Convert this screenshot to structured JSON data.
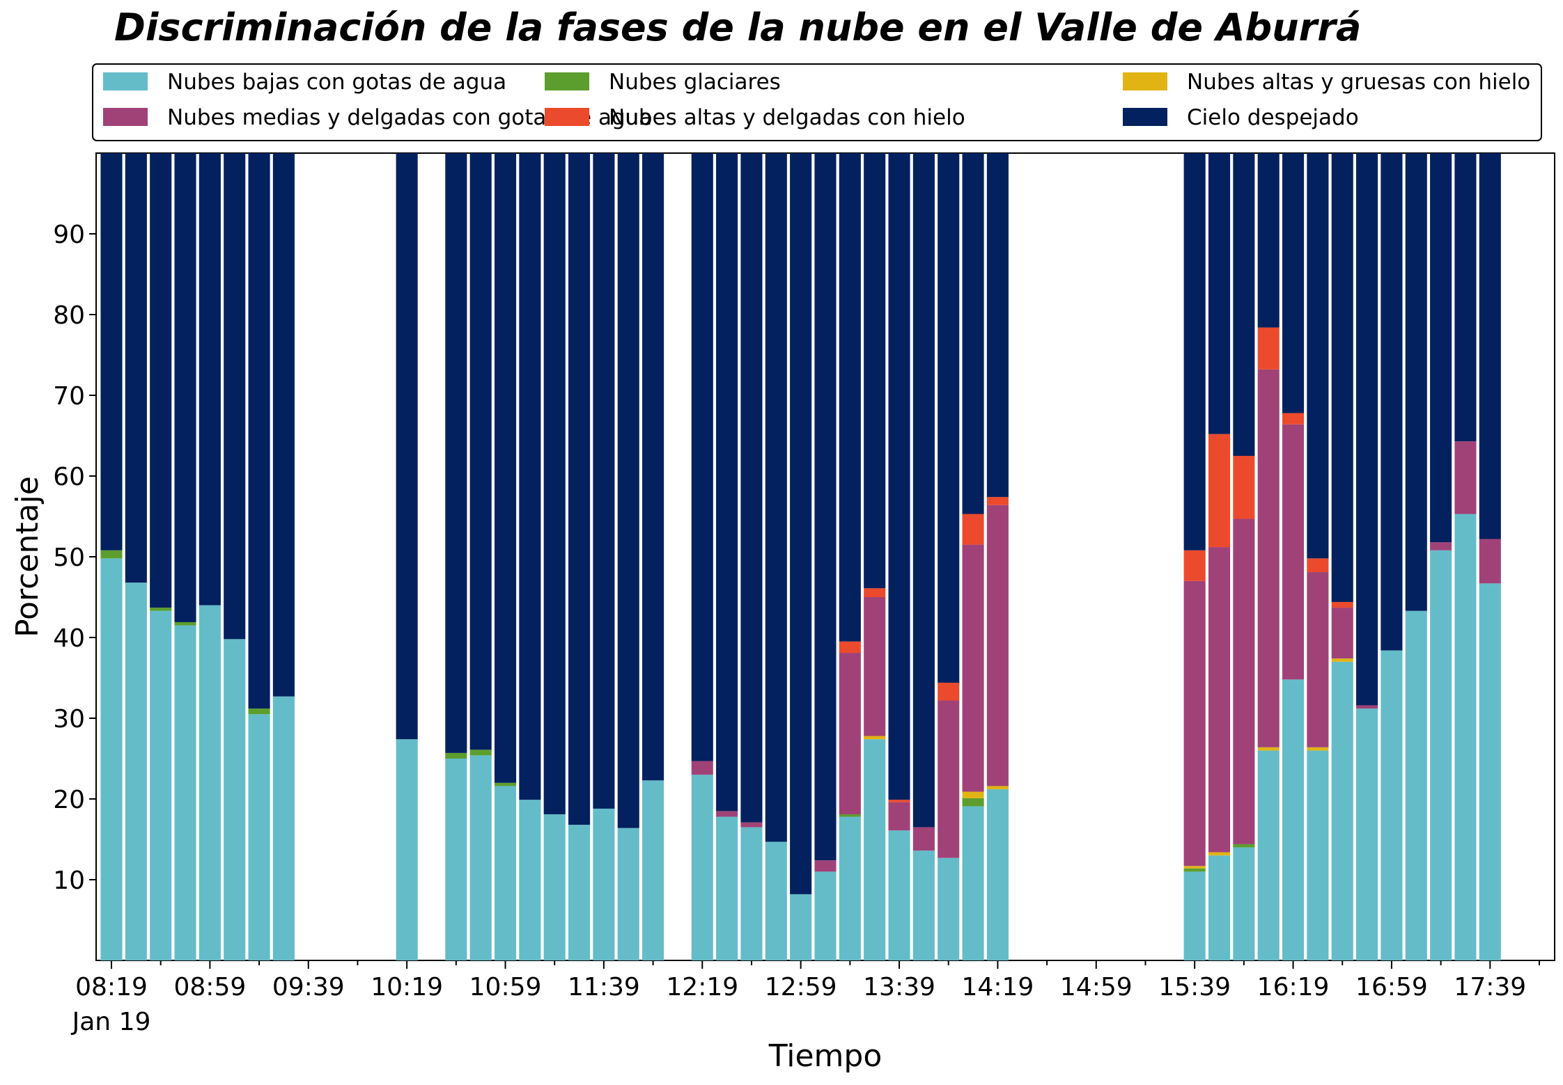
{
  "chart_data": {
    "type": "bar",
    "stacked": true,
    "title": "Discriminación de la fases de la nube en el Valle de Aburrá",
    "xlabel": "Tiempo",
    "ylabel": "Porcentaje",
    "ylim": [
      0,
      100
    ],
    "yticks": [
      10,
      20,
      30,
      40,
      50,
      60,
      70,
      80,
      90
    ],
    "x_axis": {
      "start": "08:19",
      "end": "17:59",
      "bar_interval_minutes": 10,
      "tick_labels": [
        "08:19",
        "08:59",
        "09:39",
        "10:19",
        "10:59",
        "11:39",
        "12:19",
        "12:59",
        "13:39",
        "14:19",
        "14:59",
        "15:39",
        "16:19",
        "16:59",
        "17:39"
      ],
      "date_label": "Jan 19"
    },
    "legend": {
      "placement": "top",
      "columns": 3
    },
    "grid": false,
    "series": [
      {
        "name": "Nubes bajas con gotas de agua",
        "color": "#64bcc8"
      },
      {
        "name": "Nubes glaciares",
        "color": "#5c9e2e"
      },
      {
        "name": "Nubes altas y gruesas con hielo",
        "color": "#e1b414"
      },
      {
        "name": "Nubes medias y delgadas con gotas de agua",
        "color": "#a04278"
      },
      {
        "name": "Nubes altas y delgadas con hielo",
        "color": "#ec4a2c"
      },
      {
        "name": "Cielo despejado",
        "color": "#03215e"
      }
    ],
    "bars": [
      {
        "time": "08:19",
        "values": [
          49.8,
          1.0,
          0,
          0,
          0,
          49.2
        ]
      },
      {
        "time": "08:29",
        "values": [
          46.8,
          0,
          0,
          0,
          0,
          53.2
        ]
      },
      {
        "time": "08:39",
        "values": [
          43.3,
          0.4,
          0,
          0,
          0,
          56.3
        ]
      },
      {
        "time": "08:49",
        "values": [
          41.5,
          0.4,
          0,
          0,
          0,
          58.1
        ]
      },
      {
        "time": "08:59",
        "values": [
          44.0,
          0,
          0,
          0,
          0,
          56.0
        ]
      },
      {
        "time": "09:09",
        "values": [
          39.8,
          0,
          0,
          0,
          0,
          60.2
        ]
      },
      {
        "time": "09:19",
        "values": [
          30.5,
          0.7,
          0,
          0,
          0,
          68.8
        ]
      },
      {
        "time": "09:29",
        "values": [
          32.7,
          0,
          0,
          0,
          0,
          67.3
        ]
      },
      {
        "time": "10:19",
        "values": [
          27.4,
          0,
          0,
          0,
          0,
          72.6
        ]
      },
      {
        "time": "10:39",
        "values": [
          25.0,
          0.7,
          0,
          0,
          0,
          74.3
        ]
      },
      {
        "time": "10:49",
        "values": [
          25.4,
          0.7,
          0,
          0,
          0,
          73.9
        ]
      },
      {
        "time": "10:59",
        "values": [
          21.6,
          0.4,
          0,
          0,
          0,
          78.0
        ]
      },
      {
        "time": "11:09",
        "values": [
          19.9,
          0,
          0,
          0,
          0,
          80.1
        ]
      },
      {
        "time": "11:19",
        "values": [
          18.1,
          0,
          0,
          0,
          0,
          81.9
        ]
      },
      {
        "time": "11:29",
        "values": [
          16.8,
          0,
          0,
          0,
          0,
          83.2
        ]
      },
      {
        "time": "11:39",
        "values": [
          18.8,
          0,
          0,
          0,
          0,
          81.2
        ]
      },
      {
        "time": "11:49",
        "values": [
          16.4,
          0,
          0,
          0,
          0,
          83.6
        ]
      },
      {
        "time": "11:59",
        "values": [
          22.3,
          0,
          0,
          0,
          0,
          77.7
        ]
      },
      {
        "time": "12:19",
        "values": [
          23.0,
          0,
          0,
          1.7,
          0,
          75.3
        ]
      },
      {
        "time": "12:29",
        "values": [
          17.8,
          0,
          0,
          0.7,
          0,
          81.5
        ]
      },
      {
        "time": "12:39",
        "values": [
          16.5,
          0,
          0,
          0.6,
          0,
          82.9
        ]
      },
      {
        "time": "12:49",
        "values": [
          14.7,
          0,
          0,
          0,
          0,
          85.3
        ]
      },
      {
        "time": "12:59",
        "values": [
          8.2,
          0,
          0,
          0,
          0,
          91.8
        ]
      },
      {
        "time": "13:09",
        "values": [
          11.0,
          0,
          0,
          1.4,
          0,
          87.6
        ]
      },
      {
        "time": "13:19",
        "values": [
          17.8,
          0.3,
          0,
          20.0,
          1.4,
          60.5
        ]
      },
      {
        "time": "13:29",
        "values": [
          27.4,
          0,
          0.4,
          17.2,
          1.1,
          53.9
        ]
      },
      {
        "time": "13:39",
        "values": [
          16.1,
          0,
          0,
          3.5,
          0.3,
          80.1
        ]
      },
      {
        "time": "13:49",
        "values": [
          13.6,
          0,
          0,
          2.9,
          0,
          83.5
        ]
      },
      {
        "time": "13:59",
        "values": [
          12.7,
          0,
          0,
          19.5,
          2.2,
          65.6
        ]
      },
      {
        "time": "14:09",
        "values": [
          19.1,
          1.0,
          0.8,
          30.6,
          3.8,
          44.7
        ]
      },
      {
        "time": "14:19",
        "values": [
          21.2,
          0,
          0.4,
          34.8,
          1.0,
          42.6
        ]
      },
      {
        "time": "15:39",
        "values": [
          11.0,
          0.4,
          0.3,
          35.3,
          3.8,
          49.2
        ]
      },
      {
        "time": "15:49",
        "values": [
          13.0,
          0,
          0.4,
          37.8,
          14.0,
          34.8
        ]
      },
      {
        "time": "15:59",
        "values": [
          14.0,
          0.4,
          0,
          40.3,
          7.8,
          37.5
        ]
      },
      {
        "time": "16:09",
        "values": [
          26.0,
          0,
          0.4,
          46.8,
          5.2,
          21.6
        ]
      },
      {
        "time": "16:19",
        "values": [
          34.8,
          0,
          0,
          31.6,
          1.4,
          32.2
        ]
      },
      {
        "time": "16:29",
        "values": [
          26.0,
          0,
          0.4,
          21.7,
          1.7,
          50.2
        ]
      },
      {
        "time": "16:39",
        "values": [
          37.0,
          0,
          0.4,
          6.3,
          0.7,
          55.6
        ]
      },
      {
        "time": "16:49",
        "values": [
          31.2,
          0,
          0,
          0.4,
          0,
          68.4
        ]
      },
      {
        "time": "16:59",
        "values": [
          38.4,
          0,
          0,
          0,
          0,
          61.6
        ]
      },
      {
        "time": "17:09",
        "values": [
          43.3,
          0,
          0,
          0,
          0,
          56.7
        ]
      },
      {
        "time": "17:19",
        "values": [
          50.8,
          0,
          0,
          1.0,
          0,
          48.2
        ]
      },
      {
        "time": "17:29",
        "values": [
          55.3,
          0,
          0,
          9.0,
          0,
          35.7
        ]
      },
      {
        "time": "17:39",
        "values": [
          46.7,
          0,
          0,
          5.5,
          0,
          47.8
        ]
      }
    ]
  }
}
